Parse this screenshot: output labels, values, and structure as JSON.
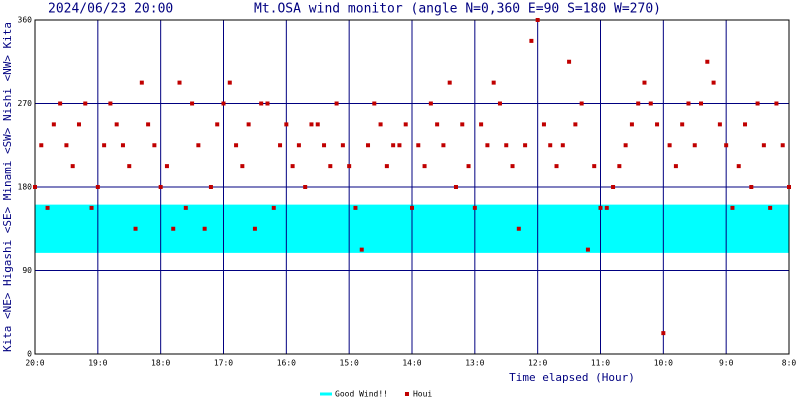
{
  "chart_data": {
    "type": "scatter",
    "timestamp": "2024/06/23 20:00",
    "title": "Mt.OSA wind monitor (angle N=0,360 E=90 S=180 W=270)",
    "x_label": "Time elapsed (Hour)",
    "y_label": "Kita <NE> Higashi <SE> Minami <SW> Nishi <NW> Kita",
    "x": [
      0,
      0.1,
      0.2,
      0.3,
      0.4,
      0.5,
      0.6,
      0.7,
      0.8,
      0.9,
      1,
      1.1,
      1.2,
      1.3,
      1.4,
      1.5,
      1.6,
      1.7,
      1.8,
      1.9,
      2,
      2.1,
      2.2,
      2.3,
      2.4,
      2.5,
      2.6,
      2.7,
      2.8,
      2.9,
      3,
      3.1,
      3.2,
      3.3,
      3.4,
      3.5,
      3.6,
      3.7,
      3.8,
      3.9,
      4,
      4.1,
      4.2,
      4.3,
      4.4,
      4.5,
      4.6,
      4.7,
      4.8,
      4.9,
      5,
      5.1,
      5.2,
      5.3,
      5.4,
      5.5,
      5.6,
      5.7,
      5.8,
      5.9,
      6,
      6.1,
      6.2,
      6.3,
      6.4,
      6.5,
      6.6,
      6.7,
      6.8,
      6.9,
      7,
      7.1,
      7.2,
      7.3,
      7.4,
      7.5,
      7.6,
      7.7,
      7.8,
      7.9,
      8,
      8.1,
      8.2,
      8.3,
      8.4,
      8.5,
      8.6,
      8.7,
      8.8,
      8.9,
      9,
      9.1,
      9.2,
      9.3,
      9.4,
      9.5,
      9.6,
      9.7,
      9.8,
      9.9,
      10,
      10.1,
      10.2,
      10.3,
      10.4,
      10.5,
      10.6,
      10.7,
      10.8,
      10.9,
      11,
      11.1,
      11.2,
      11.3,
      11.4,
      11.5,
      11.6,
      11.7,
      11.8,
      11.9,
      12
    ],
    "series": [
      {
        "name": "Houi",
        "color": "#c00000",
        "values": [
          180,
          225,
          157.5,
          247.5,
          270,
          225,
          202.5,
          247.5,
          270,
          157.5,
          180,
          225,
          270,
          247.5,
          225,
          202.5,
          135,
          292.5,
          247.5,
          225,
          180,
          202.5,
          135,
          292.5,
          157.5,
          270,
          225,
          135,
          180,
          247.5,
          270,
          292.5,
          225,
          202.5,
          247.5,
          135,
          270,
          270,
          157.5,
          225,
          247.5,
          202.5,
          225,
          180,
          247.5,
          247.5,
          225,
          202.5,
          270,
          225,
          202.5,
          157.5,
          112.5,
          225,
          270,
          247.5,
          202.5,
          225,
          225,
          247.5,
          157.5,
          225,
          202.5,
          270,
          247.5,
          225,
          292.5,
          180,
          247.5,
          202.5,
          157.5,
          247.5,
          225,
          292.5,
          270,
          225,
          202.5,
          135,
          225,
          337.5,
          360,
          247.5,
          225,
          202.5,
          225,
          315,
          247.5,
          270,
          112.5,
          202.5,
          157.5,
          157.5,
          180,
          202.5,
          225,
          247.5,
          270,
          292.5,
          270,
          247.5,
          22.5,
          225,
          202.5,
          247.5,
          270,
          225,
          270,
          315,
          292.5,
          247.5,
          225,
          157.5,
          202.5,
          247.5,
          180,
          270,
          225,
          157.5,
          270,
          225,
          180
        ]
      }
    ],
    "bands": [
      {
        "name": "Good Wind!!",
        "color": "#00ffff",
        "range": [
          109,
          161
        ]
      }
    ],
    "xlim": [
      0,
      12
    ],
    "xticks": [
      {
        "value": 0,
        "label": "20:0"
      },
      {
        "value": 1,
        "label": "19:0"
      },
      {
        "value": 2,
        "label": "18:0"
      },
      {
        "value": 3,
        "label": "17:0"
      },
      {
        "value": 4,
        "label": "16:0"
      },
      {
        "value": 5,
        "label": "15:0"
      },
      {
        "value": 6,
        "label": "14:0"
      },
      {
        "value": 7,
        "label": "13:0"
      },
      {
        "value": 8,
        "label": "12:0"
      },
      {
        "value": 9,
        "label": "11:0"
      },
      {
        "value": 10,
        "label": "10:0"
      },
      {
        "value": 11,
        "label": "9:0"
      },
      {
        "value": 12,
        "label": "8:0"
      }
    ],
    "ylim": [
      0,
      360
    ],
    "yticks": [
      0,
      90,
      180,
      270,
      360
    ],
    "grid": true
  }
}
